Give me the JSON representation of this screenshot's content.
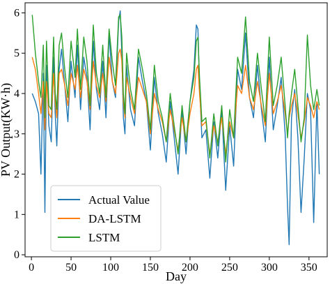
{
  "chart_data": {
    "type": "line",
    "title": "",
    "xlabel": "Day",
    "ylabel": "PV Output(KW·h)",
    "xlim": [
      -8,
      373
    ],
    "ylim": [
      -0.05,
      6.25
    ],
    "xticks": [
      0,
      50,
      100,
      150,
      200,
      250,
      300,
      350
    ],
    "yticks": [
      0,
      1,
      2,
      3,
      4,
      5,
      6
    ],
    "grid": false,
    "legend_position": "lower-left",
    "series": [
      {
        "name": "Actual Value",
        "color": "#1f77b4",
        "x": [
          1,
          5,
          9,
          12,
          15,
          17,
          19,
          22,
          25,
          28,
          30,
          32,
          35,
          38,
          42,
          46,
          50,
          55,
          58,
          62,
          66,
          70,
          74,
          78,
          82,
          86,
          90,
          94,
          98,
          102,
          106,
          110,
          112,
          114,
          116,
          118,
          120,
          125,
          130,
          135,
          140,
          145,
          150,
          155,
          160,
          165,
          170,
          175,
          180,
          185,
          190,
          195,
          200,
          205,
          208,
          210,
          212,
          215,
          220,
          225,
          230,
          235,
          240,
          245,
          250,
          255,
          260,
          265,
          270,
          275,
          280,
          285,
          290,
          295,
          300,
          305,
          310,
          315,
          320,
          323,
          325,
          328,
          332,
          336,
          340,
          344,
          348,
          352,
          356,
          360,
          363
        ],
        "y": [
          4.0,
          3.8,
          3.5,
          2.0,
          4.5,
          1.05,
          4.7,
          3.2,
          2.8,
          4.9,
          3.5,
          2.7,
          4.6,
          5.1,
          4.2,
          3.3,
          4.8,
          3.9,
          5.2,
          3.6,
          4.9,
          4.4,
          3.1,
          5.3,
          4.1,
          3.6,
          4.8,
          3.4,
          5.5,
          4.3,
          3.9,
          5.8,
          6.05,
          5.0,
          3.4,
          3.0,
          4.7,
          3.6,
          3.2,
          4.9,
          4.3,
          3.8,
          2.6,
          4.4,
          3.5,
          3.0,
          2.3,
          3.8,
          2.9,
          2.0,
          3.6,
          2.5,
          3.8,
          4.6,
          5.7,
          5.6,
          4.2,
          2.9,
          3.1,
          1.9,
          3.3,
          2.4,
          3.6,
          1.6,
          3.2,
          2.2,
          4.6,
          4.1,
          5.5,
          3.9,
          3.4,
          4.7,
          3.6,
          2.8,
          4.9,
          3.1,
          3.7,
          4.4,
          3.0,
          1.2,
          0.25,
          3.4,
          4.1,
          2.9,
          1.05,
          2.4,
          4.0,
          3.6,
          0.8,
          3.8,
          2.0
        ]
      },
      {
        "name": "DA-LSTM",
        "color": "#ff7f0e",
        "x": [
          1,
          5,
          9,
          12,
          15,
          17,
          19,
          22,
          25,
          28,
          30,
          32,
          35,
          38,
          42,
          46,
          50,
          55,
          58,
          62,
          66,
          70,
          74,
          78,
          82,
          86,
          90,
          94,
          98,
          102,
          106,
          110,
          112,
          114,
          116,
          118,
          120,
          125,
          130,
          135,
          140,
          145,
          150,
          155,
          160,
          165,
          170,
          175,
          180,
          185,
          190,
          195,
          200,
          205,
          208,
          210,
          212,
          215,
          220,
          225,
          230,
          235,
          240,
          245,
          250,
          255,
          260,
          265,
          270,
          275,
          280,
          285,
          290,
          295,
          300,
          305,
          310,
          315,
          320,
          323,
          325,
          328,
          332,
          336,
          340,
          344,
          348,
          352,
          356,
          360,
          363
        ],
        "y": [
          4.9,
          4.6,
          4.0,
          3.5,
          4.3,
          3.1,
          4.3,
          3.5,
          3.4,
          4.5,
          3.8,
          3.4,
          4.5,
          4.6,
          4.2,
          3.7,
          4.5,
          4.1,
          4.7,
          3.9,
          4.6,
          4.3,
          3.6,
          4.8,
          4.2,
          3.9,
          4.5,
          3.8,
          4.9,
          4.3,
          4.0,
          5.0,
          5.1,
          4.8,
          3.8,
          3.4,
          4.4,
          3.9,
          3.5,
          4.4,
          4.1,
          3.8,
          3.0,
          4.0,
          3.6,
          3.3,
          2.8,
          3.6,
          3.1,
          2.6,
          3.4,
          2.8,
          3.5,
          4.0,
          4.6,
          4.7,
          4.0,
          3.2,
          3.3,
          2.5,
          3.2,
          2.8,
          3.4,
          2.5,
          3.3,
          2.9,
          4.2,
          4.0,
          4.7,
          3.9,
          3.6,
          4.3,
          3.7,
          3.2,
          4.5,
          3.5,
          3.8,
          4.2,
          3.5,
          3.0,
          3.4,
          3.7,
          4.0,
          3.5,
          2.9,
          3.3,
          3.9,
          3.7,
          3.4,
          3.8,
          3.6
        ]
      },
      {
        "name": "LSTM",
        "color": "#2ca02c",
        "x": [
          1,
          5,
          9,
          12,
          15,
          17,
          19,
          22,
          25,
          28,
          30,
          32,
          35,
          38,
          42,
          46,
          50,
          55,
          58,
          62,
          66,
          70,
          74,
          78,
          82,
          86,
          90,
          94,
          98,
          102,
          106,
          110,
          112,
          114,
          116,
          118,
          120,
          125,
          130,
          135,
          140,
          145,
          150,
          155,
          160,
          165,
          170,
          175,
          180,
          185,
          190,
          195,
          200,
          205,
          208,
          210,
          212,
          215,
          220,
          225,
          230,
          235,
          240,
          245,
          250,
          255,
          260,
          265,
          270,
          275,
          280,
          285,
          290,
          295,
          300,
          305,
          310,
          315,
          320,
          323,
          325,
          328,
          332,
          336,
          340,
          344,
          348,
          352,
          356,
          360,
          363
        ],
        "y": [
          5.95,
          5.0,
          4.3,
          3.9,
          5.2,
          3.4,
          5.3,
          3.7,
          3.6,
          5.4,
          4.0,
          3.6,
          5.2,
          5.5,
          4.6,
          3.9,
          5.3,
          4.4,
          5.6,
          4.1,
          5.4,
          4.8,
          3.7,
          5.7,
          4.5,
          4.0,
          5.2,
          3.9,
          5.6,
          4.8,
          4.2,
          5.9,
          5.95,
          5.4,
          4.0,
          3.5,
          5.0,
          4.1,
          3.6,
          5.1,
          4.6,
          4.0,
          3.1,
          4.7,
          3.8,
          3.4,
          2.8,
          4.0,
          3.2,
          2.5,
          3.7,
          2.8,
          3.8,
          4.4,
          5.3,
          5.4,
          4.4,
          3.3,
          3.4,
          2.4,
          3.5,
          2.7,
          3.7,
          2.3,
          3.6,
          2.9,
          4.9,
          4.5,
          5.9,
          4.3,
          3.8,
          5.0,
          4.1,
          3.3,
          5.4,
          3.7,
          4.2,
          4.9,
          3.7,
          2.9,
          3.5,
          4.0,
          4.6,
          3.7,
          2.8,
          3.4,
          5.45,
          4.2,
          3.6,
          4.1,
          3.7
        ]
      }
    ]
  }
}
